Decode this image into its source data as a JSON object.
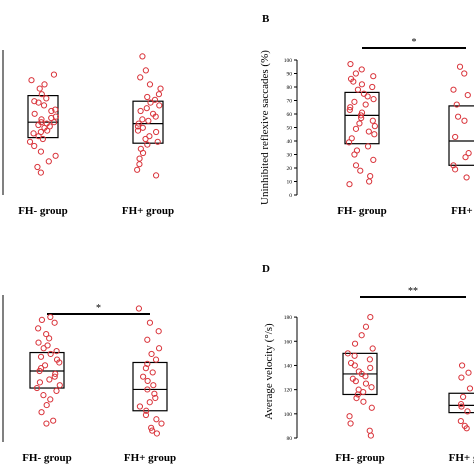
{
  "chart_data": [
    {
      "type": "scatter",
      "panel_label": "",
      "ylabel": "",
      "categories": [
        "FH-  group",
        "FH+ group"
      ],
      "ylim": [
        0,
        100
      ],
      "yticks": [],
      "significance": "",
      "series": [
        {
          "category": "FH-  group",
          "box": {
            "q1": 41,
            "median": 52,
            "q3": 71
          },
          "values": [
            86,
            82,
            79,
            76,
            72,
            69,
            67,
            66,
            64,
            61,
            60,
            58,
            56,
            55,
            54,
            52,
            52,
            51,
            50,
            49,
            48,
            46,
            45,
            44,
            42,
            40,
            38,
            35,
            31,
            28,
            24,
            20,
            16
          ]
        },
        {
          "category": "FH+ group",
          "box": {
            "q1": 37,
            "median": 51,
            "q3": 67
          },
          "values": [
            99,
            89,
            84,
            79,
            76,
            72,
            70,
            68,
            66,
            64,
            62,
            60,
            58,
            56,
            54,
            53,
            51,
            49,
            48,
            46,
            45,
            42,
            40,
            38,
            36,
            33,
            30,
            26,
            22,
            18,
            14
          ]
        }
      ]
    },
    {
      "type": "scatter",
      "panel_label": "B",
      "ylabel": "Uninhibited reflexive saccades (%)",
      "categories": [
        "FH-  group",
        "FH+ g"
      ],
      "ylim": [
        0,
        100
      ],
      "yticks": [
        0,
        10,
        20,
        30,
        40,
        50,
        60,
        70,
        80,
        90,
        100
      ],
      "significance": "*",
      "series": [
        {
          "category": "FH-  group",
          "box": {
            "q1": 38,
            "median": 59,
            "q3": 76
          },
          "values": [
            97,
            93,
            90,
            88,
            86,
            84,
            82,
            80,
            78,
            75,
            73,
            71,
            69,
            67,
            65,
            63,
            61,
            59,
            57,
            55,
            53,
            51,
            49,
            47,
            45,
            42,
            39,
            36,
            33,
            30,
            26,
            22,
            18,
            14,
            10,
            8
          ]
        },
        {
          "category": "FH+ g",
          "box": {
            "q1": 22,
            "median": 40,
            "q3": 66
          },
          "values": [
            95,
            90,
            86,
            82,
            78,
            74,
            70,
            67,
            64,
            61,
            58,
            55,
            52,
            49,
            46,
            43,
            40,
            37,
            34,
            31,
            28,
            25,
            22,
            19,
            16,
            13,
            10,
            7
          ]
        }
      ]
    },
    {
      "type": "scatter",
      "panel_label": "",
      "ylabel": "",
      "categories": [
        "FH-  group",
        "FH+ group"
      ],
      "ylim": [
        0,
        100
      ],
      "yticks": [],
      "significance": "*",
      "series": [
        {
          "category": "FH-  group",
          "box": {
            "q1": 38,
            "median": 50,
            "q3": 63
          },
          "values": [
            88,
            86,
            84,
            80,
            76,
            73,
            70,
            68,
            66,
            64,
            62,
            60,
            58,
            56,
            54,
            52,
            50,
            48,
            46,
            44,
            42,
            40,
            38,
            36,
            33,
            30,
            26,
            21,
            15,
            13
          ]
        },
        {
          "category": "FH+ group",
          "box": {
            "q1": 22,
            "median": 37,
            "q3": 56
          },
          "values": [
            94,
            84,
            78,
            72,
            66,
            62,
            58,
            55,
            52,
            49,
            46,
            43,
            40,
            37,
            34,
            31,
            28,
            25,
            22,
            19,
            16,
            13,
            10,
            8,
            6
          ]
        }
      ]
    },
    {
      "type": "scatter",
      "panel_label": "D",
      "ylabel": "Average velocity (°/s)",
      "categories": [
        "FH-  group",
        "FH+ gr"
      ],
      "ylim": [
        80,
        190
      ],
      "yticks": [
        80,
        100,
        120,
        140,
        160,
        180
      ],
      "significance": "**",
      "series": [
        {
          "category": "FH-  group",
          "box": {
            "q1": 116,
            "median": 133,
            "q3": 150
          },
          "values": [
            180,
            172,
            165,
            158,
            154,
            150,
            148,
            145,
            142,
            140,
            138,
            135,
            133,
            131,
            129,
            127,
            125,
            122,
            120,
            118,
            116,
            113,
            110,
            105,
            98,
            92,
            86,
            82
          ]
        },
        {
          "category": "FH+ gr",
          "box": {
            "q1": 101,
            "median": 107,
            "q3": 117
          },
          "values": [
            140,
            134,
            130,
            127,
            124,
            121,
            118,
            116,
            114,
            112,
            110,
            108,
            107,
            106,
            104,
            102,
            100,
            98,
            96,
            94,
            92,
            90,
            88
          ]
        }
      ]
    }
  ]
}
